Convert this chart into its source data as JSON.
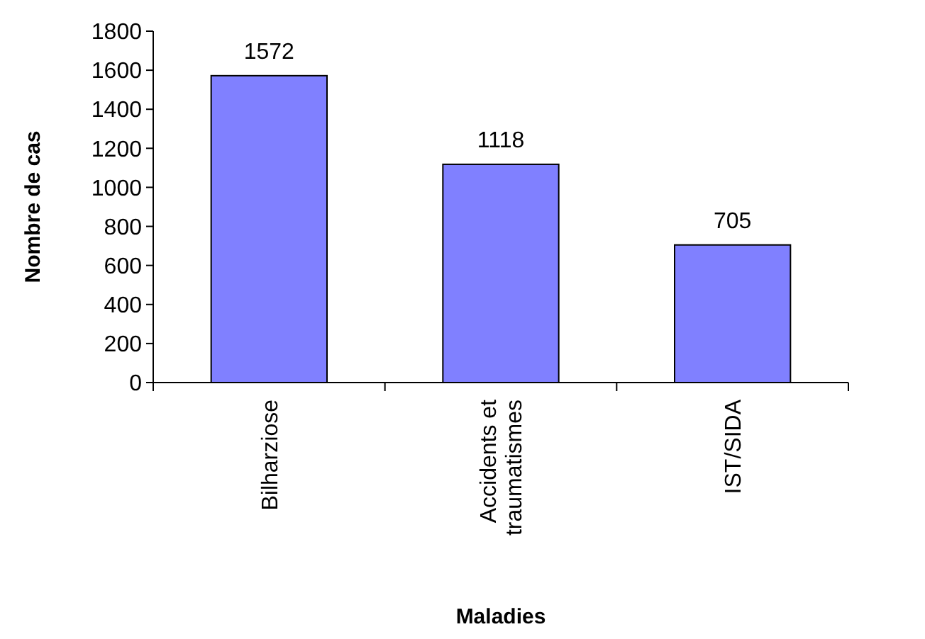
{
  "chart_data": {
    "type": "bar",
    "xlabel": "Maladies",
    "ylabel": "Nombre de cas",
    "categories": [
      "Bilharziose",
      "Accidents et traumatismes",
      "IST/SIDA"
    ],
    "values": [
      1572,
      1118,
      705
    ],
    "color": "#8080ff",
    "ylim": [
      0,
      1800
    ],
    "yticks": [
      0,
      200,
      400,
      600,
      800,
      1000,
      1200,
      1400,
      1600,
      1800
    ],
    "data_labels": true,
    "grid": false
  }
}
